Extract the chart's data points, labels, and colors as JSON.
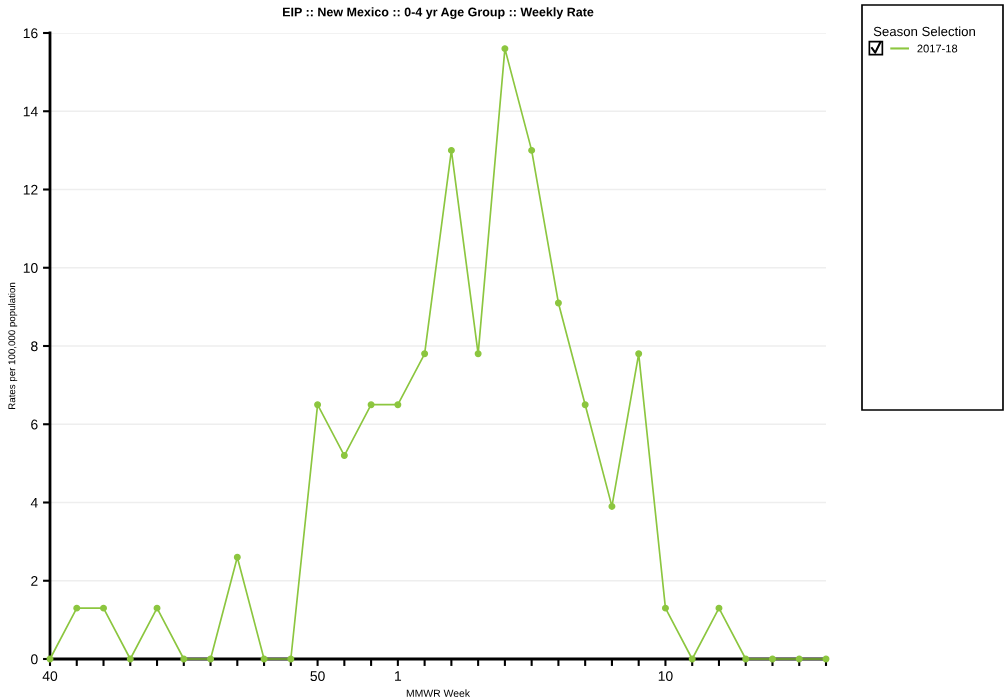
{
  "chart_data": {
    "type": "line",
    "title": "EIP :: New Mexico :: 0-4 yr Age Group :: Weekly Rate",
    "xlabel": "MMWR Week",
    "ylabel": "Rates per 100,000 population",
    "legend_title": "Season Selection",
    "categories": [
      "40",
      null,
      null,
      null,
      null,
      null,
      null,
      null,
      null,
      null,
      "50",
      null,
      null,
      "1",
      null,
      null,
      null,
      null,
      null,
      null,
      null,
      null,
      null,
      "10",
      null,
      null,
      null,
      null,
      null,
      null
    ],
    "series": [
      {
        "name": "2017-18",
        "color": "#8cc63f",
        "values": [
          0,
          1.3,
          1.3,
          0,
          1.3,
          0,
          0,
          2.6,
          0,
          0,
          6.5,
          5.2,
          6.5,
          6.5,
          7.8,
          13,
          7.8,
          15.6,
          13,
          9.1,
          6.5,
          3.9,
          7.8,
          1.3,
          0,
          1.3,
          0,
          0,
          0,
          0
        ]
      }
    ],
    "ylim": [
      0,
      16
    ],
    "yticks": [
      0,
      2,
      4,
      6,
      8,
      10,
      12,
      14,
      16
    ],
    "grid": "y",
    "legend": "right",
    "marker": "circle",
    "line_style": "solid"
  }
}
